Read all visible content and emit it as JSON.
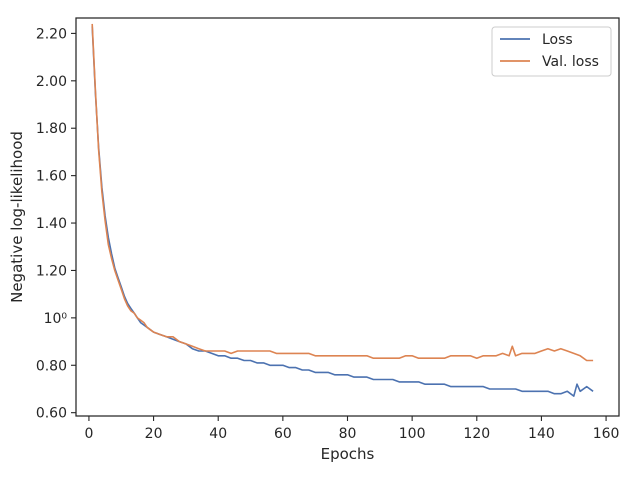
{
  "chart_data": {
    "type": "line",
    "xlabel": "Epochs",
    "ylabel": "Negative log-likelihood",
    "xlim": [
      -4,
      164
    ],
    "ylim": [
      0.586,
      2.265
    ],
    "x_ticks": [
      "0",
      "20",
      "40",
      "60",
      "80",
      "100",
      "120",
      "140",
      "160"
    ],
    "y_ticks": [
      "0.60",
      "0.80",
      "10⁰",
      "1.20",
      "1.40",
      "1.60",
      "1.80",
      "2.00",
      "2.20"
    ],
    "y_tick_values": [
      0.6,
      0.8,
      1.0,
      1.2,
      1.4,
      1.6,
      1.8,
      2.0,
      2.2
    ],
    "grid": false,
    "legend_position": "top-right",
    "series": [
      {
        "name": "Loss",
        "color": "#4c72b0",
        "x": [
          1,
          2,
          3,
          4,
          5,
          6,
          7,
          8,
          9,
          10,
          11,
          12,
          13,
          14,
          15,
          16,
          17,
          18,
          19,
          20,
          22,
          24,
          26,
          28,
          30,
          32,
          34,
          36,
          38,
          40,
          42,
          44,
          46,
          48,
          50,
          52,
          54,
          56,
          58,
          60,
          62,
          64,
          66,
          68,
          70,
          72,
          74,
          76,
          78,
          80,
          82,
          84,
          86,
          88,
          90,
          92,
          94,
          96,
          98,
          100,
          102,
          104,
          106,
          108,
          110,
          112,
          114,
          116,
          118,
          120,
          122,
          124,
          126,
          128,
          130,
          132,
          134,
          136,
          138,
          140,
          142,
          144,
          146,
          148,
          150,
          151,
          152,
          154,
          156
        ],
        "y": [
          2.23,
          1.95,
          1.72,
          1.55,
          1.43,
          1.34,
          1.27,
          1.21,
          1.17,
          1.13,
          1.09,
          1.06,
          1.04,
          1.02,
          1.0,
          0.98,
          0.97,
          0.96,
          0.95,
          0.94,
          0.93,
          0.92,
          0.91,
          0.9,
          0.89,
          0.87,
          0.86,
          0.86,
          0.85,
          0.84,
          0.84,
          0.83,
          0.83,
          0.82,
          0.82,
          0.81,
          0.81,
          0.8,
          0.8,
          0.8,
          0.79,
          0.79,
          0.78,
          0.78,
          0.77,
          0.77,
          0.77,
          0.76,
          0.76,
          0.76,
          0.75,
          0.75,
          0.75,
          0.74,
          0.74,
          0.74,
          0.74,
          0.73,
          0.73,
          0.73,
          0.73,
          0.72,
          0.72,
          0.72,
          0.72,
          0.71,
          0.71,
          0.71,
          0.71,
          0.71,
          0.71,
          0.7,
          0.7,
          0.7,
          0.7,
          0.7,
          0.69,
          0.69,
          0.69,
          0.69,
          0.69,
          0.68,
          0.68,
          0.69,
          0.67,
          0.72,
          0.69,
          0.71,
          0.69
        ]
      },
      {
        "name": "Val. loss",
        "color": "#dd8452",
        "x": [
          1,
          2,
          3,
          4,
          5,
          6,
          7,
          8,
          9,
          10,
          11,
          12,
          13,
          14,
          15,
          16,
          17,
          18,
          19,
          20,
          22,
          24,
          26,
          28,
          30,
          32,
          34,
          36,
          38,
          40,
          42,
          44,
          46,
          48,
          50,
          52,
          54,
          56,
          58,
          60,
          62,
          64,
          66,
          68,
          70,
          72,
          74,
          76,
          78,
          80,
          82,
          84,
          86,
          88,
          90,
          92,
          94,
          96,
          98,
          100,
          102,
          104,
          106,
          108,
          110,
          112,
          114,
          116,
          118,
          120,
          122,
          124,
          126,
          128,
          130,
          131,
          132,
          134,
          136,
          138,
          140,
          142,
          144,
          146,
          148,
          150,
          152,
          154,
          156
        ],
        "y": [
          2.24,
          1.96,
          1.71,
          1.53,
          1.41,
          1.31,
          1.25,
          1.2,
          1.16,
          1.12,
          1.08,
          1.05,
          1.03,
          1.02,
          1.0,
          0.99,
          0.98,
          0.96,
          0.95,
          0.94,
          0.93,
          0.92,
          0.92,
          0.9,
          0.89,
          0.88,
          0.87,
          0.86,
          0.86,
          0.86,
          0.86,
          0.85,
          0.86,
          0.86,
          0.86,
          0.86,
          0.86,
          0.86,
          0.85,
          0.85,
          0.85,
          0.85,
          0.85,
          0.85,
          0.84,
          0.84,
          0.84,
          0.84,
          0.84,
          0.84,
          0.84,
          0.84,
          0.84,
          0.83,
          0.83,
          0.83,
          0.83,
          0.83,
          0.84,
          0.84,
          0.83,
          0.83,
          0.83,
          0.83,
          0.83,
          0.84,
          0.84,
          0.84,
          0.84,
          0.83,
          0.84,
          0.84,
          0.84,
          0.85,
          0.84,
          0.88,
          0.84,
          0.85,
          0.85,
          0.85,
          0.86,
          0.87,
          0.86,
          0.87,
          0.86,
          0.85,
          0.84,
          0.82,
          0.82
        ]
      }
    ]
  }
}
